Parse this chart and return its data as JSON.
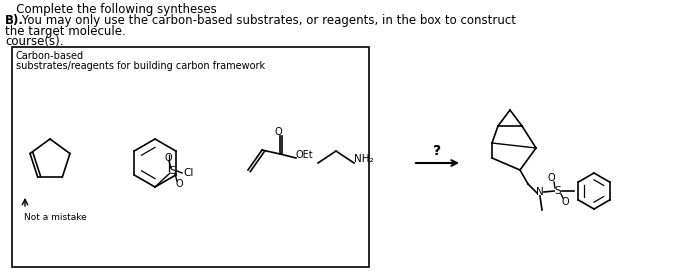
{
  "title_line1": "   Complete the following syntheses",
  "title_line2_bold": "B).",
  "title_line2_rest": " You may only use the carbon-based substrates, or reagents, in the box to construct",
  "title_line3": "the target molecule.",
  "title_line4": "course(s).",
  "box_label1": "Carbon-based",
  "box_label2": "substrates/reagents for building carbon framework",
  "not_a_mistake": "Not a mistake",
  "question_mark": "?",
  "bg_color": "#ffffff",
  "text_color": "#000000",
  "fig_width": 7.0,
  "fig_height": 2.77,
  "dpi": 100
}
